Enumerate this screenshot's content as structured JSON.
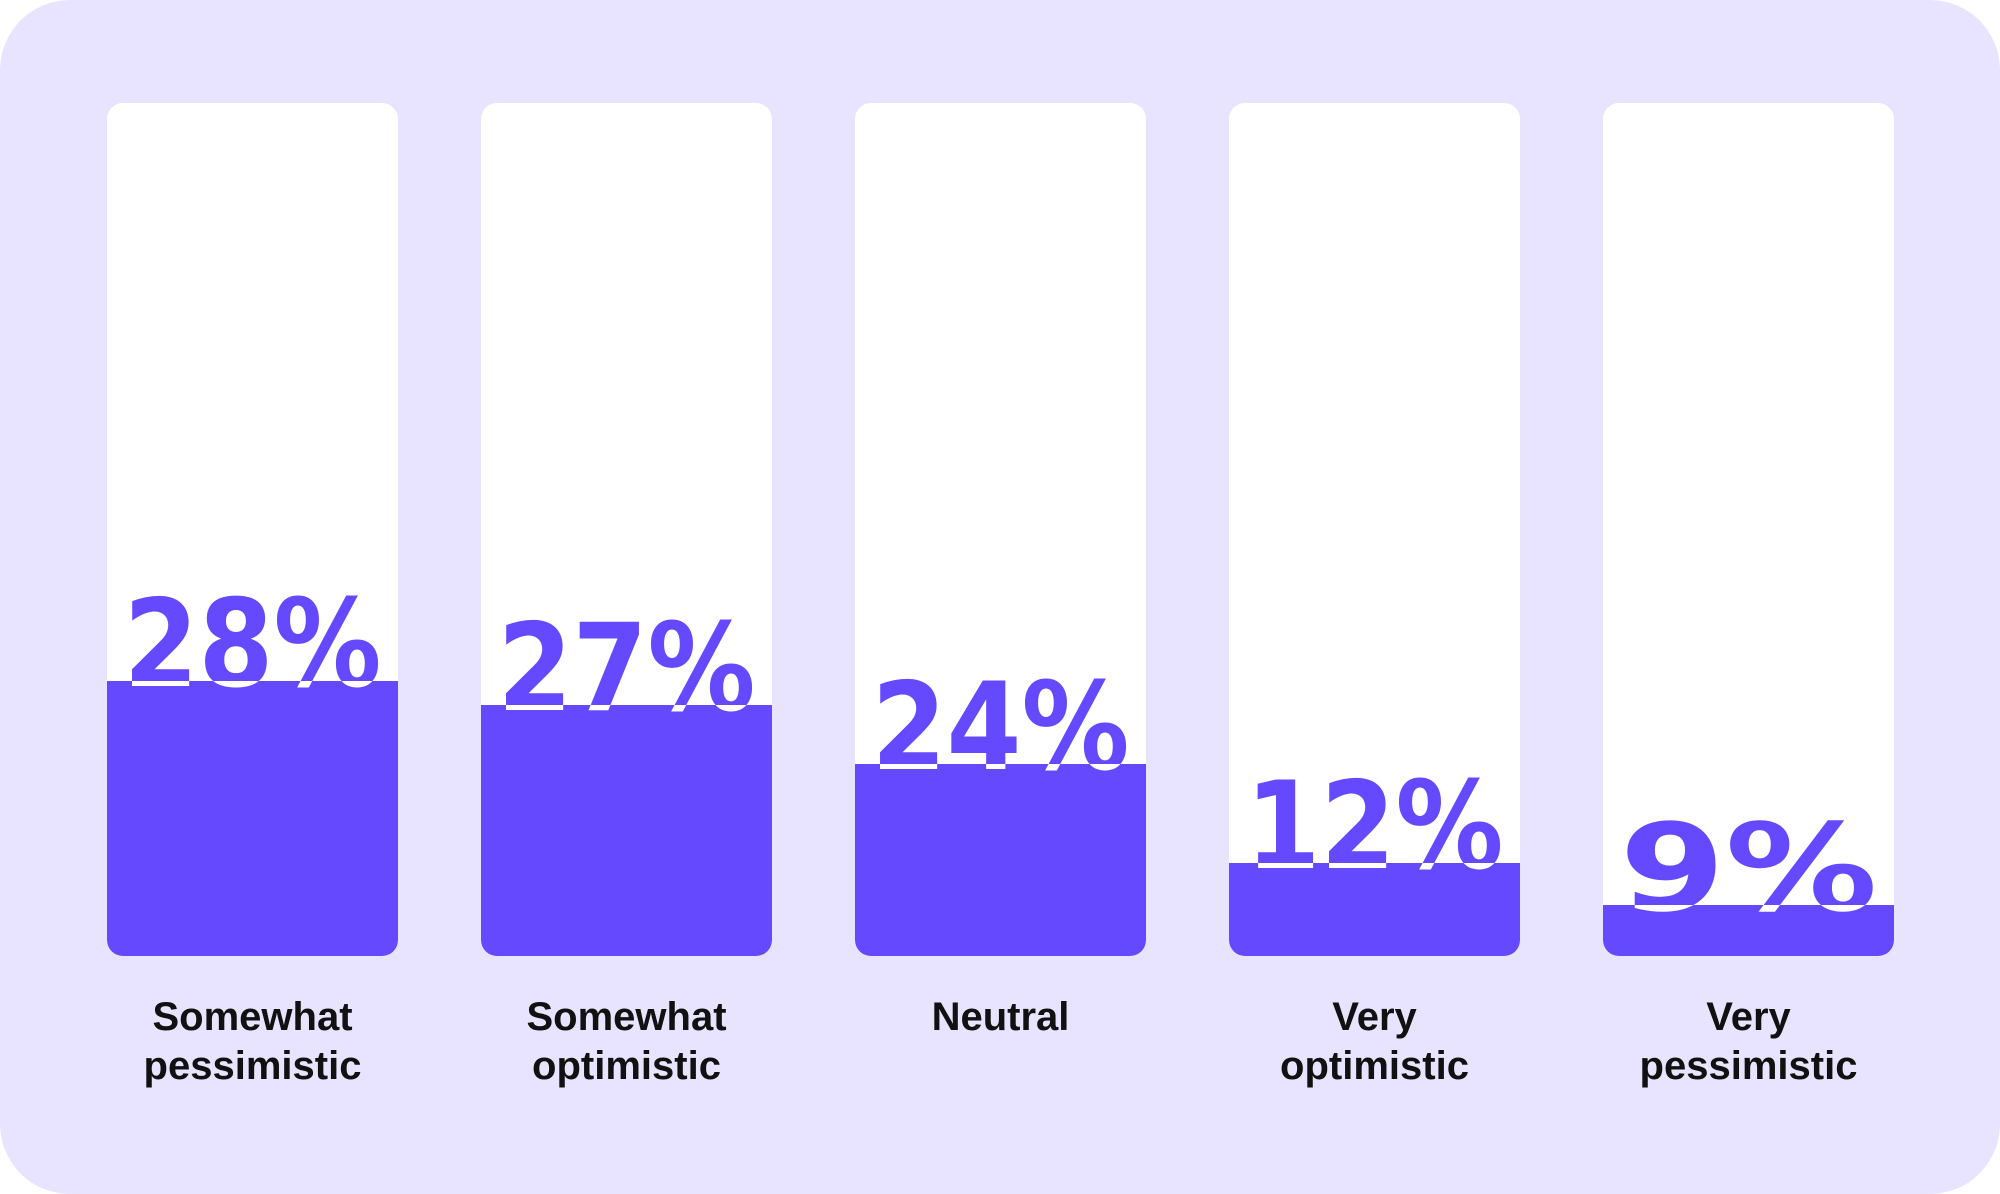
{
  "chart_data": {
    "type": "bar",
    "categories": [
      [
        "Somewhat",
        "pessimistic"
      ],
      [
        "Somewhat",
        "optimistic"
      ],
      [
        "Neutral"
      ],
      [
        "Very",
        "optimistic"
      ],
      [
        "Very",
        "pessimistic"
      ]
    ],
    "values": [
      28,
      27,
      24,
      12,
      9
    ],
    "value_labels": [
      "28%",
      "27%",
      "24%",
      "12%",
      "9%"
    ],
    "unit": "%",
    "ylim": [
      0,
      100
    ],
    "grid": false,
    "legend": "none",
    "colors": {
      "card_background": "#e8e4ff",
      "track": "#ffffff",
      "fill": "#6549ff",
      "value_text": "#6549ff",
      "label_text": "#111111"
    }
  }
}
